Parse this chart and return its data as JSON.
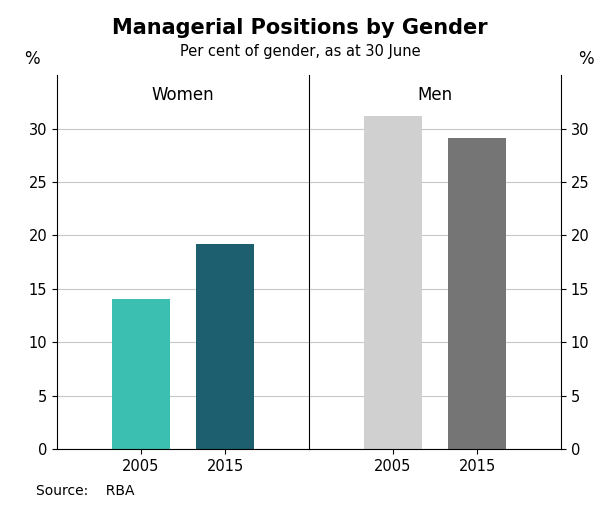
{
  "title": "Managerial Positions by Gender",
  "subtitle": "Per cent of gender, as at 30 June",
  "source": "Source:    RBA",
  "panels": [
    {
      "label": "Women",
      "years": [
        "2005",
        "2015"
      ],
      "values": [
        14.0,
        19.2
      ],
      "colors": [
        "#3abfb0",
        "#1d5f6e"
      ]
    },
    {
      "label": "Men",
      "years": [
        "2005",
        "2015"
      ],
      "values": [
        31.2,
        29.1
      ],
      "colors": [
        "#d0d0d0",
        "#757575"
      ]
    }
  ],
  "ylim": [
    0,
    35
  ],
  "yticks": [
    0,
    5,
    10,
    15,
    20,
    25,
    30
  ],
  "ylabel": "%",
  "background_color": "#ffffff",
  "grid_color": "#c8c8c8",
  "title_fontsize": 15,
  "subtitle_fontsize": 10.5,
  "label_fontsize": 12,
  "tick_fontsize": 10.5,
  "source_fontsize": 10
}
